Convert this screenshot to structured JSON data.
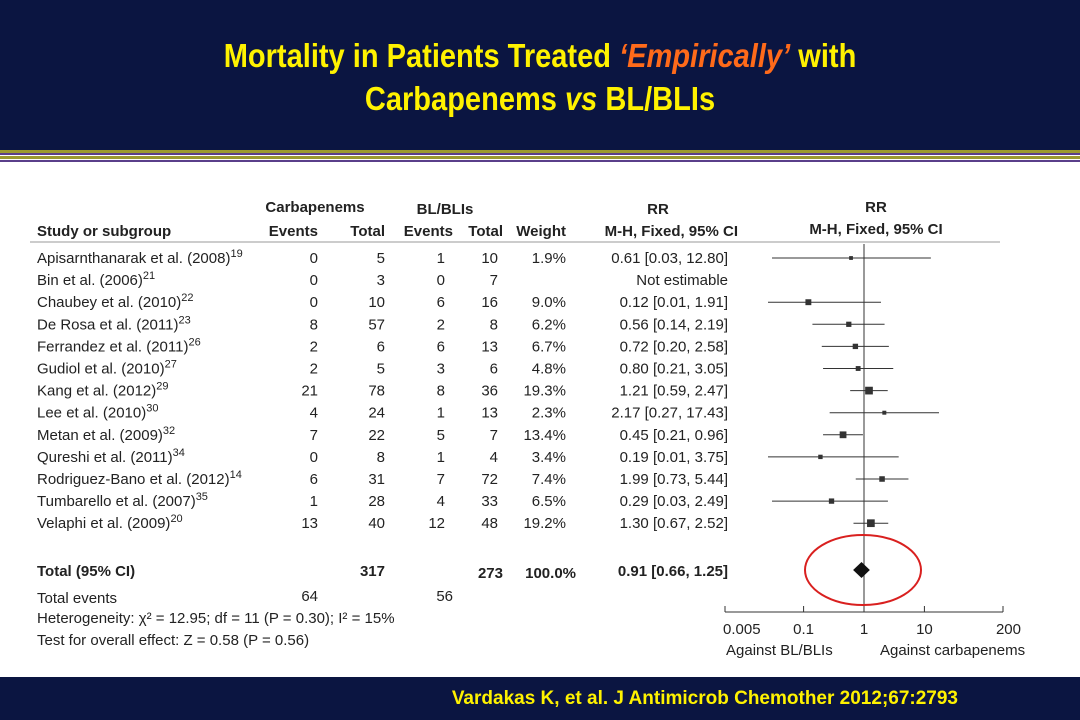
{
  "slide": {
    "title_part1": "Mortality in Patients Treated ",
    "title_highlight": "‘Empirically’",
    "title_part2": " with",
    "title_line2_a": "Carbapenems ",
    "title_line2_vs": "vs",
    "title_line2_b": " BL/BLIs",
    "citation": "Vardakas K, et al. J Antimicrob Chemother 2012;67:2793"
  },
  "colors": {
    "header_bg": "#0b1541",
    "title_yellow": "#fff200",
    "title_highlight": "#ff6a1a",
    "stripe_olive": "#9c9a2e",
    "stripe_purple": "#5a3f8a",
    "highlight_circle": "#d9201f"
  },
  "table": {
    "group1": "Carbapenems",
    "group2": "BL/BLIs",
    "rr_header": "RR",
    "headers": [
      "Study or subgroup",
      "Events",
      "Total",
      "Events",
      "Total",
      "Weight",
      "M-H, Fixed, 95% CI"
    ],
    "total_row": {
      "label": "Total (95% CI)",
      "total1": "317",
      "total2": "273",
      "weight": "100.0%",
      "ci": "0.91 [0.66, 1.25]"
    },
    "total_events": {
      "label": "Total events",
      "e1": "64",
      "e2": "56"
    },
    "heterogeneity": "Heterogeneity: χ² = 12.95; df = 11 (P = 0.30); I² = 15%",
    "overall_effect": "Test for overall effect: Z = 0.58 (P = 0.56)"
  },
  "chart_data": {
    "type": "forest",
    "title": "RR",
    "subtitle": "M-H, Fixed, 95% CI",
    "xscale": "log",
    "xlim": [
      0.005,
      200
    ],
    "xticks": [
      "0.005",
      "0.1",
      "1",
      "10",
      "200"
    ],
    "xtick_values": [
      0.005,
      0.1,
      1,
      10,
      200
    ],
    "xlabel_left": "Against BL/BLIs",
    "xlabel_right": "Against carbapenems",
    "reference_line": 1,
    "studies": [
      {
        "study": "Apisarnthanarak et al. (2008)",
        "ref": "19",
        "e1": "0",
        "n1": "5",
        "e2": "1",
        "n2": "10",
        "weight": "1.9%",
        "ci": "0.61 [0.03, 12.80]",
        "rr": 0.61,
        "low": 0.03,
        "high": 12.8,
        "w": 1.9
      },
      {
        "study": "Bin et al. (2006)",
        "ref": "21",
        "e1": "0",
        "n1": "3",
        "e2": "0",
        "n2": "7",
        "weight": "",
        "ci": "Not estimable",
        "rr": null,
        "low": null,
        "high": null,
        "w": 0
      },
      {
        "study": "Chaubey et al. (2010)",
        "ref": "22",
        "e1": "0",
        "n1": "10",
        "e2": "6",
        "n2": "16",
        "weight": "9.0%",
        "ci": "0.12 [0.01, 1.91]",
        "rr": 0.12,
        "low": 0.01,
        "high": 1.91,
        "w": 9.0
      },
      {
        "study": "De Rosa et al. (2011)",
        "ref": "23",
        "e1": "8",
        "n1": "57",
        "e2": "2",
        "n2": "8",
        "weight": "6.2%",
        "ci": "0.56 [0.14, 2.19]",
        "rr": 0.56,
        "low": 0.14,
        "high": 2.19,
        "w": 6.2
      },
      {
        "study": "Ferrandez et al. (2011)",
        "ref": "26",
        "e1": "2",
        "n1": "6",
        "e2": "6",
        "n2": "13",
        "weight": "6.7%",
        "ci": "0.72 [0.20, 2.58]",
        "rr": 0.72,
        "low": 0.2,
        "high": 2.58,
        "w": 6.7
      },
      {
        "study": "Gudiol et al. (2010)",
        "ref": "27",
        "e1": "2",
        "n1": "5",
        "e2": "3",
        "n2": "6",
        "weight": "4.8%",
        "ci": "0.80 [0.21, 3.05]",
        "rr": 0.8,
        "low": 0.21,
        "high": 3.05,
        "w": 4.8
      },
      {
        "study": "Kang et al. (2012)",
        "ref": "29",
        "e1": "21",
        "n1": "78",
        "e2": "8",
        "n2": "36",
        "weight": "19.3%",
        "ci": "1.21 [0.59, 2.47]",
        "rr": 1.21,
        "low": 0.59,
        "high": 2.47,
        "w": 19.3
      },
      {
        "study": "Lee et al. (2010)",
        "ref": "30",
        "e1": "4",
        "n1": "24",
        "e2": "1",
        "n2": "13",
        "weight": "2.3%",
        "ci": "2.17 [0.27, 17.43]",
        "rr": 2.17,
        "low": 0.27,
        "high": 17.43,
        "w": 2.3
      },
      {
        "study": "Metan et al. (2009)",
        "ref": "32",
        "e1": "7",
        "n1": "22",
        "e2": "5",
        "n2": "7",
        "weight": "13.4%",
        "ci": "0.45 [0.21, 0.96]",
        "rr": 0.45,
        "low": 0.21,
        "high": 0.96,
        "w": 13.4
      },
      {
        "study": "Qureshi et al. (2011)",
        "ref": "34",
        "e1": "0",
        "n1": "8",
        "e2": "1",
        "n2": "4",
        "weight": "3.4%",
        "ci": "0.19 [0.01, 3.75]",
        "rr": 0.19,
        "low": 0.01,
        "high": 3.75,
        "w": 3.4
      },
      {
        "study": "Rodriguez-Bano et al. (2012)",
        "ref": "14",
        "e1": "6",
        "n1": "31",
        "e2": "7",
        "n2": "72",
        "weight": "7.4%",
        "ci": "1.99 [0.73, 5.44]",
        "rr": 1.99,
        "low": 0.73,
        "high": 5.44,
        "w": 7.4
      },
      {
        "study": "Tumbarello et al. (2007)",
        "ref": "35",
        "e1": "1",
        "n1": "28",
        "e2": "4",
        "n2": "33",
        "weight": "6.5%",
        "ci": "0.29 [0.03, 2.49]",
        "rr": 0.29,
        "low": 0.03,
        "high": 2.49,
        "w": 6.5
      },
      {
        "study": "Velaphi et al. (2009)",
        "ref": "20",
        "e1": "13",
        "n1": "40",
        "e2": "12",
        "n2": "48",
        "weight": "19.2%",
        "ci": "1.30 [0.67, 2.52]",
        "rr": 1.3,
        "low": 0.67,
        "high": 2.52,
        "w": 19.2
      }
    ],
    "total": {
      "rr": 0.91,
      "low": 0.66,
      "high": 1.25
    }
  }
}
